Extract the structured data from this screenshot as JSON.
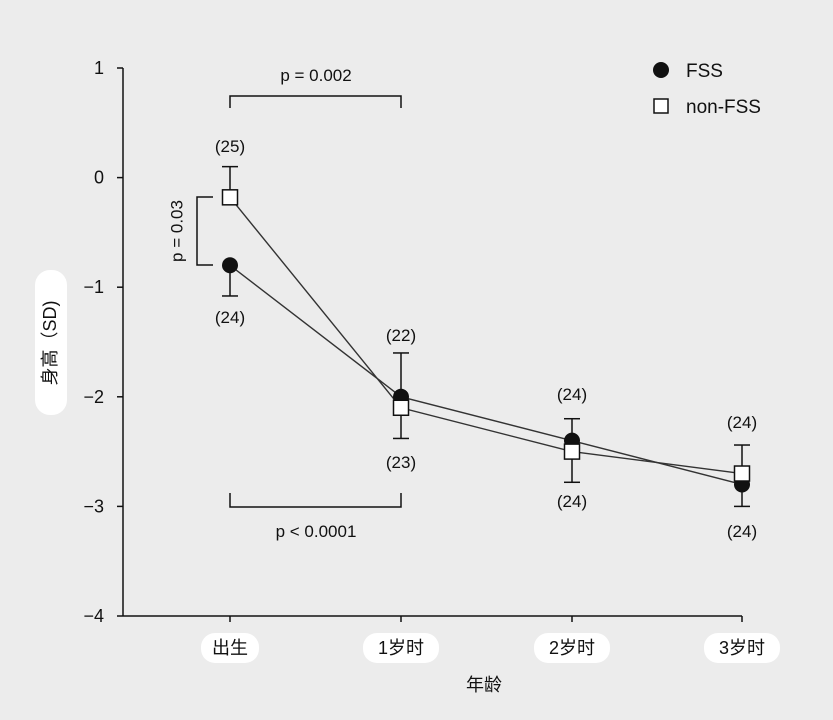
{
  "chart_data": {
    "type": "line",
    "title": "",
    "xlabel": "年龄",
    "ylabel": "身高（SD)",
    "categories": [
      "出生",
      "1岁时",
      "2岁时",
      "3岁时"
    ],
    "ylim": [
      -4,
      1
    ],
    "yticks": [
      1,
      0,
      -1,
      -2,
      -3,
      -4
    ],
    "ytick_labels": [
      "1",
      "0",
      "−1",
      "−2",
      "−3",
      "−4"
    ],
    "grid": false,
    "legend_position": "top-right",
    "series": [
      {
        "name": "FSS",
        "marker": "filled-circle",
        "values": [
          -0.8,
          -2.0,
          -2.4,
          -2.8
        ],
        "error_low": [
          -1.08,
          null,
          null,
          -3.0
        ],
        "error_high": [
          null,
          -1.6,
          -2.2,
          null
        ],
        "n_labels": [
          "(24)",
          "(22)",
          "(24)",
          "(24)"
        ]
      },
      {
        "name": "non-FSS",
        "marker": "open-square",
        "values": [
          -0.18,
          -2.1,
          -2.5,
          -2.7
        ],
        "error_low": [
          null,
          -2.38,
          -2.78,
          null
        ],
        "error_high": [
          0.1,
          null,
          null,
          -2.44
        ],
        "n_labels": [
          "(25)",
          "(23)",
          "(24)",
          "(24)"
        ]
      }
    ],
    "annotations": {
      "p_birth_vs_1y_nonfss": "p = 0.002",
      "p_birth_vs_1y_fss": "p < 0.0001",
      "p_birth_between_groups": "p = 0.03"
    }
  }
}
